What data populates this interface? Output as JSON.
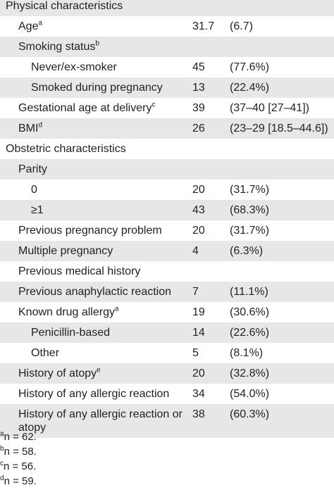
{
  "table": {
    "rows": [
      {
        "label": "Physical characteristics",
        "level": 0
      },
      {
        "label": "Age",
        "sup": "a",
        "n": "31.7",
        "pct": "(6.7)",
        "level": 1
      },
      {
        "label": "Smoking status",
        "sup": "b",
        "level": 1
      },
      {
        "label": "Never/ex-smoker",
        "n": "45",
        "pct": "(77.6%)",
        "level": 2
      },
      {
        "label": "Smoked during pregnancy",
        "n": "13",
        "pct": "(22.4%)",
        "level": 2
      },
      {
        "label": "Gestational age at delivery",
        "sup": "c",
        "n": "39",
        "pct": "(37–40 [27–41])",
        "level": 1
      },
      {
        "label": "BMI",
        "sup": "d",
        "n": "26",
        "pct": "(23–29 [18.5–44.6])",
        "level": 1
      },
      {
        "label": "Obstetric characteristics",
        "level": 0
      },
      {
        "label": "Parity",
        "level": 1
      },
      {
        "label": "0",
        "n": "20",
        "pct": "(31.7%)",
        "level": 2
      },
      {
        "label": "≥1",
        "n": "43",
        "pct": "(68.3%)",
        "level": 2
      },
      {
        "label": "Previous pregnancy problem",
        "n": "20",
        "pct": "(31.7%)",
        "level": 1
      },
      {
        "label": "Multiple pregnancy",
        "n": "4",
        "pct": "(6.3%)",
        "level": 1
      },
      {
        "label": "Previous medical history",
        "level": 1
      },
      {
        "label": "Previous anaphylactic reaction",
        "n": "7",
        "pct": "(11.1%)",
        "level": 1
      },
      {
        "label": "Known drug allergy",
        "sup": "a",
        "n": "19",
        "pct": "(30.6%)",
        "level": 1
      },
      {
        "label": "Penicillin-based",
        "n": "14",
        "pct": "(22.6%)",
        "level": 2
      },
      {
        "label": "Other",
        "n": "5",
        "pct": "(8.1%)",
        "level": 2
      },
      {
        "label": "History of atopy",
        "sup": "e",
        "n": "20",
        "pct": "(32.8%)",
        "level": 1
      },
      {
        "label": "History of any allergic reaction",
        "n": "34",
        "pct": "(54.0%)",
        "level": 1
      },
      {
        "label": "History of any allergic reaction or atopy",
        "n": "38",
        "pct": "(60.3%)",
        "level": 1
      }
    ]
  },
  "footnotes": [
    {
      "mark": "a",
      "text": "n = 62."
    },
    {
      "mark": "b",
      "text": "n = 58."
    },
    {
      "mark": "c",
      "text": "n = 56."
    },
    {
      "mark": "d",
      "text": "n = 59."
    }
  ]
}
